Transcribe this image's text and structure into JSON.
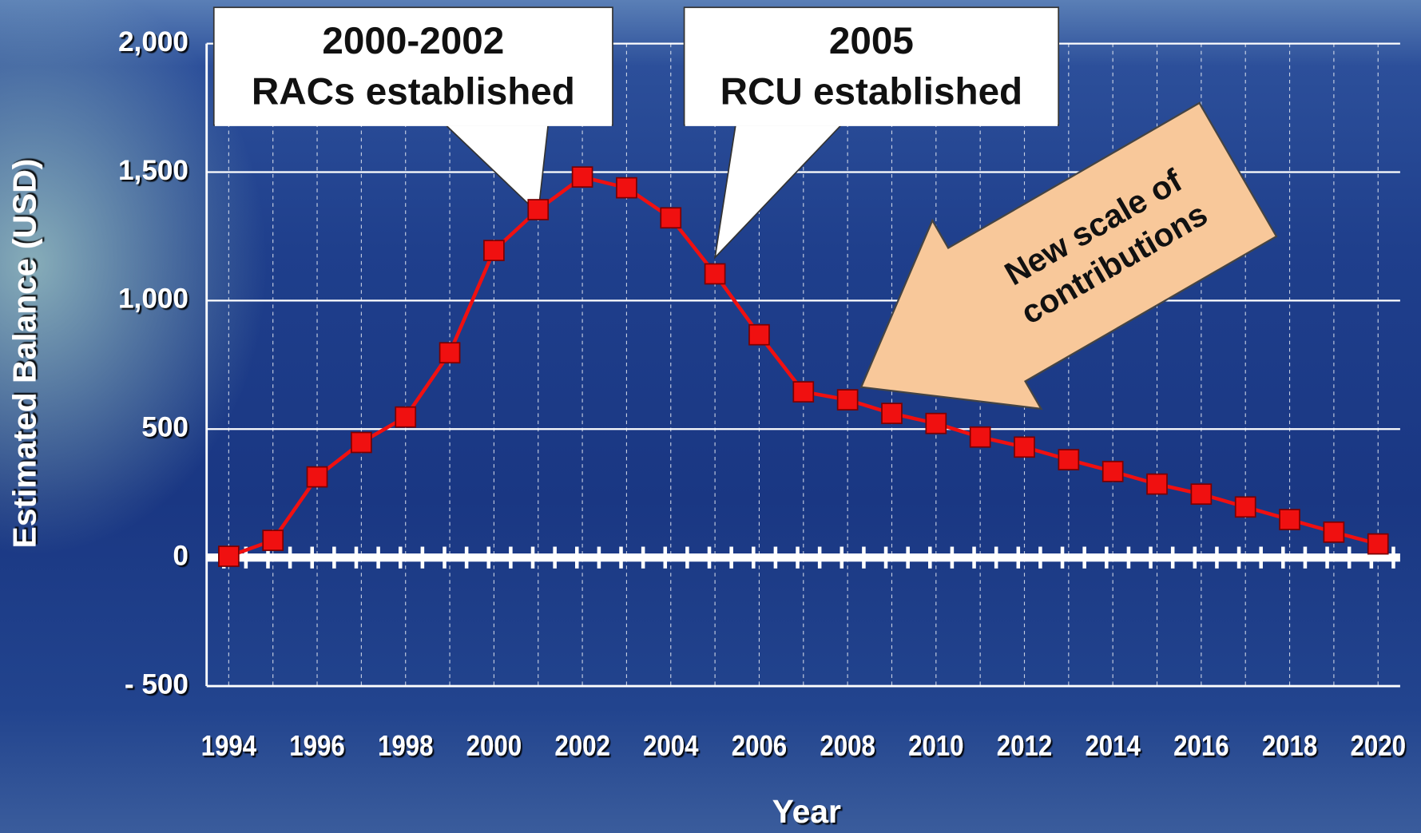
{
  "chart_data": {
    "type": "line",
    "x_label": "Year",
    "y_label": "Estimated Balance (USD)",
    "x": [
      1994,
      1995,
      1996,
      1997,
      1998,
      1999,
      2000,
      2001,
      2002,
      2003,
      2004,
      2005,
      2006,
      2007,
      2008,
      2009,
      2010,
      2011,
      2012,
      2013,
      2014,
      2015,
      2016,
      2017,
      2018,
      2019,
      2020
    ],
    "series": [
      {
        "name": "Estimated Balance",
        "color": "#f01010",
        "values": [
          5,
          67,
          314,
          448,
          547,
          797,
          1195,
          1354,
          1481,
          1439,
          1322,
          1104,
          867,
          645,
          614,
          561,
          522,
          469,
          430,
          381,
          335,
          286,
          247,
          197,
          148,
          99,
          53
        ]
      }
    ],
    "xlim": [
      1993.5,
      2020.5
    ],
    "xticks": [
      1994,
      1996,
      1998,
      2000,
      2002,
      2004,
      2006,
      2008,
      2010,
      2012,
      2014,
      2016,
      2018,
      2020
    ],
    "ylim": [
      -500,
      2000
    ],
    "yticks": [
      {
        "value": -500,
        "label": "- 500"
      },
      0,
      500,
      {
        "value": 1000,
        "label": "1,000"
      },
      {
        "value": 1500,
        "label": "1,500"
      },
      {
        "value": 2000,
        "label": "2,000"
      }
    ],
    "grid": true,
    "annotations": [
      {
        "lines": [
          "2000-2002",
          "RACs established"
        ],
        "x": 2001
      },
      {
        "lines": [
          "2005",
          "RCU established"
        ],
        "x": 2005
      },
      {
        "lines": [
          "New scale of",
          "contributions"
        ],
        "x": 2008
      }
    ]
  }
}
